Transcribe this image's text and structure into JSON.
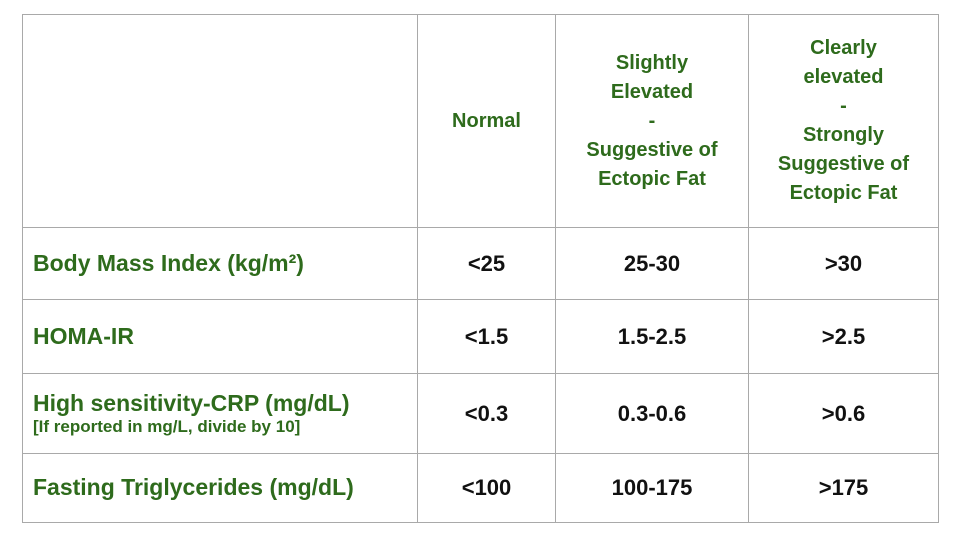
{
  "colors": {
    "header_green": "#2e6b1c",
    "value_black": "#111111",
    "grid_border": "#a9a9a9",
    "background": "#ffffff"
  },
  "table": {
    "columns": [
      "",
      "Normal",
      "Slightly\nElevated\n-\nSuggestive of\nEctopic Fat",
      "Clearly\nelevated\n-\nStrongly\nSuggestive of\nEctopic Fat"
    ],
    "rows": [
      {
        "label": "Body Mass Index (kg/m²)",
        "note": "",
        "values": [
          "<25",
          "25-30",
          ">30"
        ]
      },
      {
        "label": "HOMA-IR",
        "note": "",
        "values": [
          "<1.5",
          "1.5-2.5",
          ">2.5"
        ]
      },
      {
        "label": "High sensitivity-CRP (mg/dL)",
        "note": "[If reported in mg/L, divide by 10]",
        "values": [
          "<0.3",
          "0.3-0.6",
          ">0.6"
        ]
      },
      {
        "label": "Fasting Triglycerides (mg/dL)",
        "note": "",
        "values": [
          "<100",
          "100-175",
          ">175"
        ]
      }
    ]
  },
  "chart_data": {
    "type": "table",
    "title": "",
    "columns": [
      "",
      "Normal",
      "Slightly Elevated - Suggestive of Ectopic Fat",
      "Clearly elevated - Strongly Suggestive of Ectopic Fat"
    ],
    "rows": [
      [
        "Body Mass Index (kg/m²)",
        "<25",
        "25-30",
        ">30"
      ],
      [
        "HOMA-IR",
        "<1.5",
        "1.5-2.5",
        ">2.5"
      ],
      [
        "High sensitivity-CRP (mg/dL) [If reported in mg/L, divide by 10]",
        "<0.3",
        "0.3-0.6",
        ">0.6"
      ],
      [
        "Fasting Triglycerides (mg/dL)",
        "<100",
        "100-175",
        ">175"
      ]
    ]
  }
}
